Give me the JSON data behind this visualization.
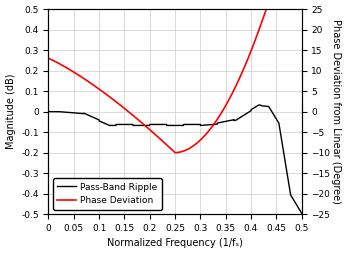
{
  "title": "",
  "xlabel": "Normalized Frequency (1/fₛ)",
  "ylabel_left": "Magnitude (dB)",
  "ylabel_right": "Phase Deviation from Linear (Degree)",
  "xlim": [
    0,
    0.5
  ],
  "ylim_left": [
    -0.5,
    0.5
  ],
  "ylim_right": [
    -25,
    25
  ],
  "xticks": [
    0,
    0.05,
    0.1,
    0.15,
    0.2,
    0.25,
    0.3,
    0.35,
    0.4,
    0.45,
    0.5
  ],
  "yticks_left": [
    -0.5,
    -0.4,
    -0.3,
    -0.2,
    -0.1,
    0,
    0.1,
    0.2,
    0.3,
    0.4,
    0.5
  ],
  "yticks_right": [
    -25,
    -20,
    -15,
    -10,
    -5,
    0,
    5,
    10,
    15,
    20,
    25
  ],
  "legend_labels": [
    "Pass-Band Ripple",
    "Phase Deviation"
  ],
  "legend_colors": [
    "black",
    "red"
  ],
  "bg_color": "#ffffff",
  "grid_color": "#cccccc",
  "tick_color": "black",
  "label_color": "black",
  "right_label_color": "black"
}
